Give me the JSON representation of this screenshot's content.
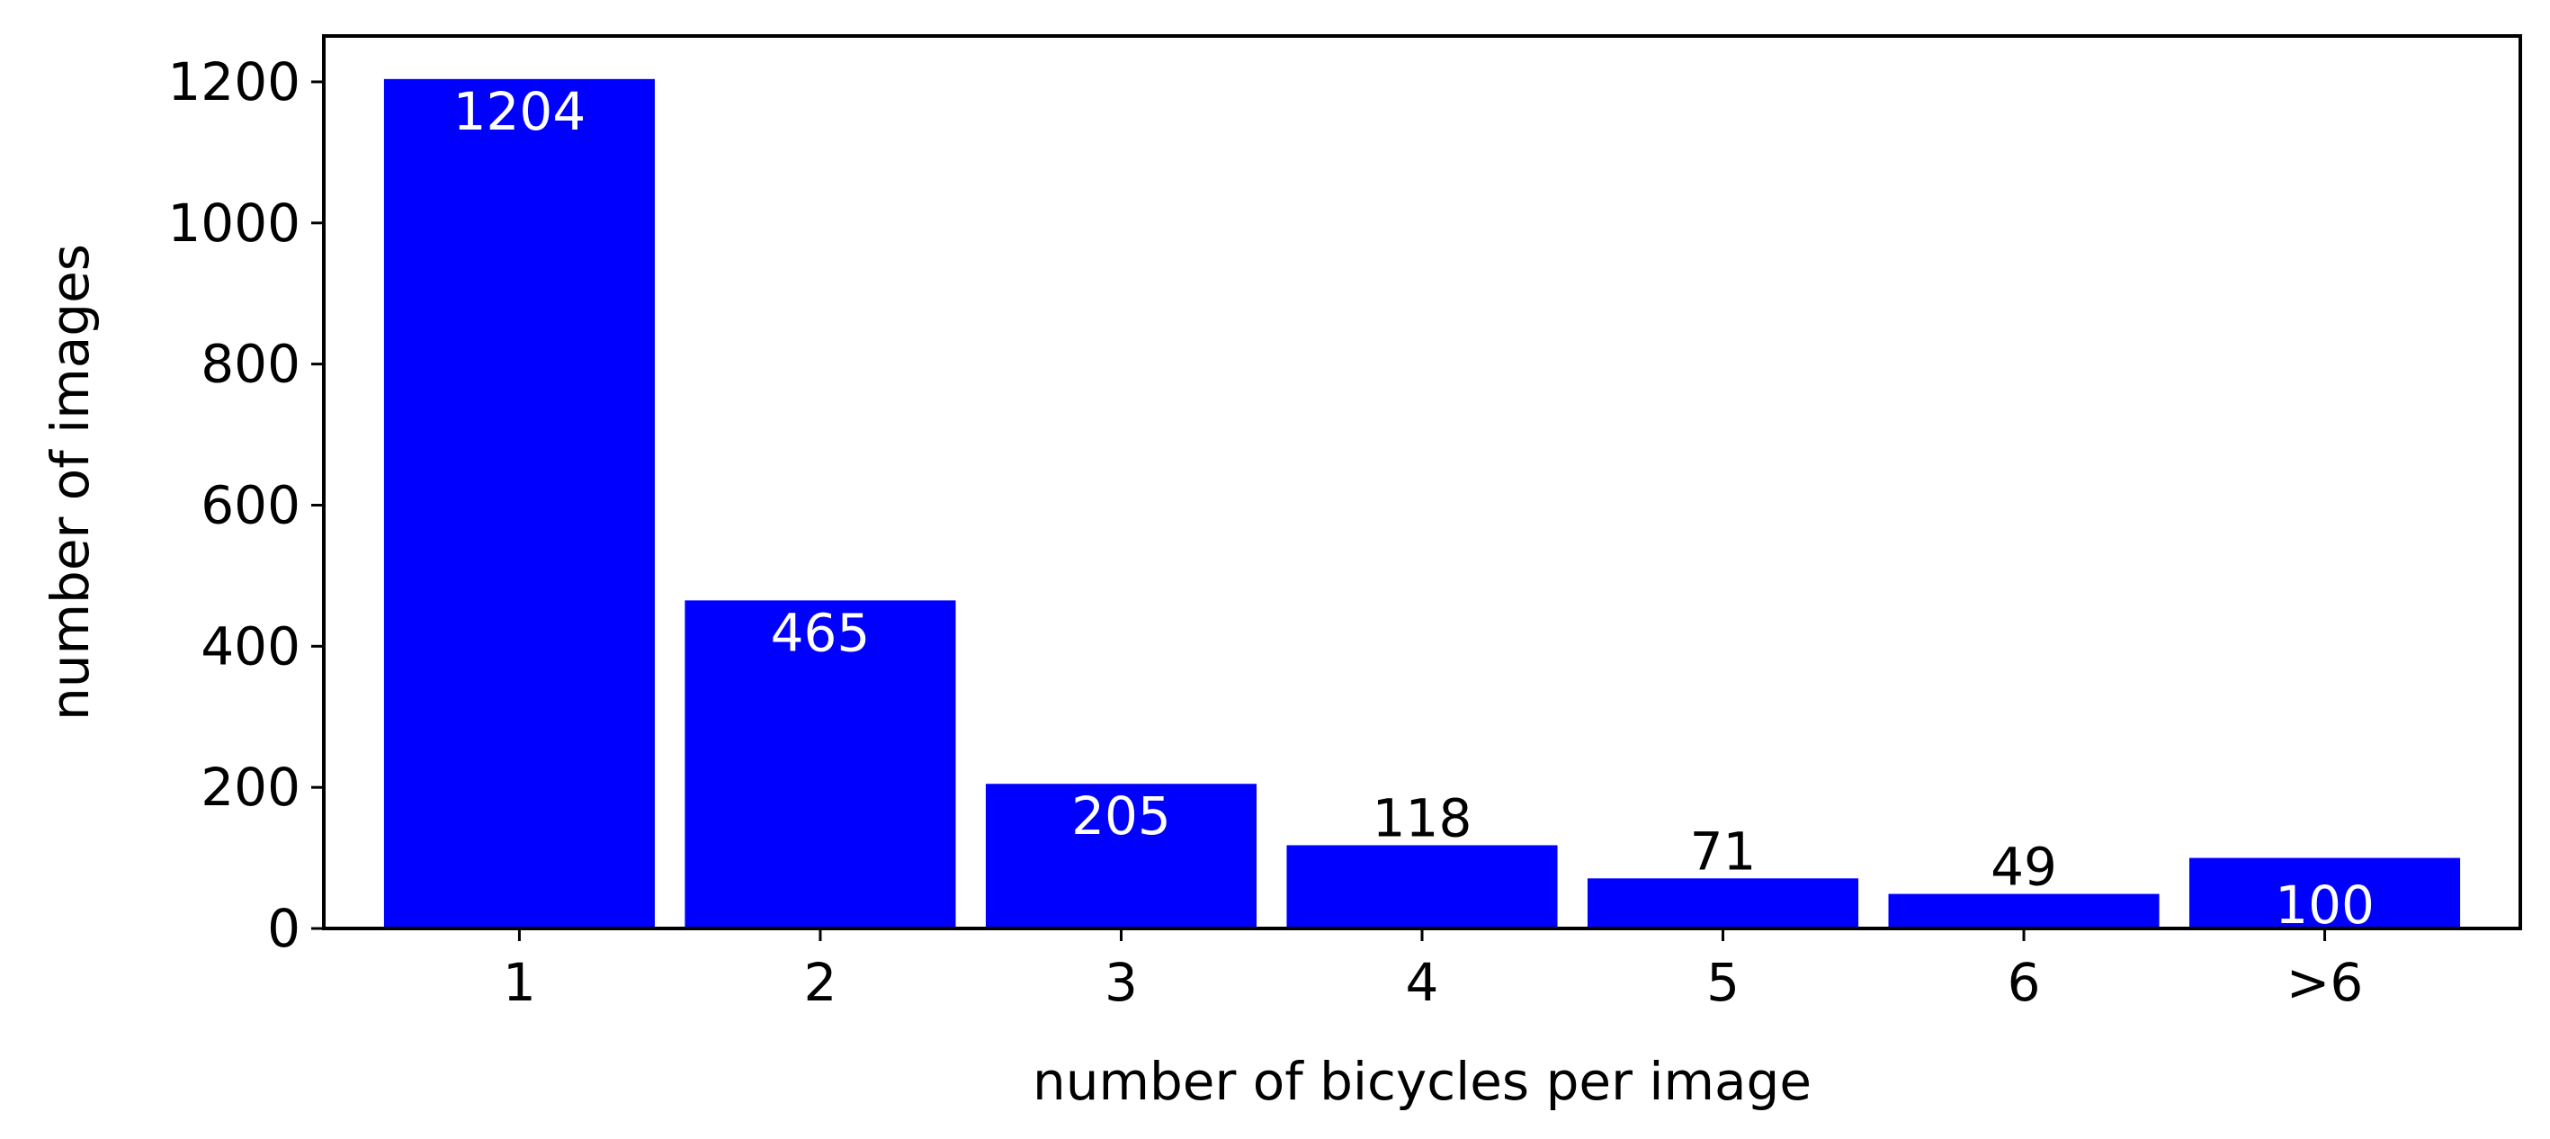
{
  "chart_data": {
    "type": "bar",
    "categories": [
      "1",
      "2",
      "3",
      "4",
      "5",
      "6",
      ">6"
    ],
    "values": [
      1204,
      465,
      205,
      118,
      71,
      49,
      100
    ],
    "value_labels": [
      "1204",
      "465",
      "205",
      "118",
      "71",
      "49",
      "100"
    ],
    "title": "",
    "xlabel": "number of bicycles per image",
    "ylabel": "number of images",
    "ylim": [
      0,
      1265
    ],
    "yticks": [
      0,
      200,
      400,
      600,
      800,
      1000,
      1200
    ],
    "grid": false,
    "legend": "none",
    "bar_color": "#0000ff",
    "label_inside_color": "#ffffff",
    "label_outside_color": "#000000"
  }
}
